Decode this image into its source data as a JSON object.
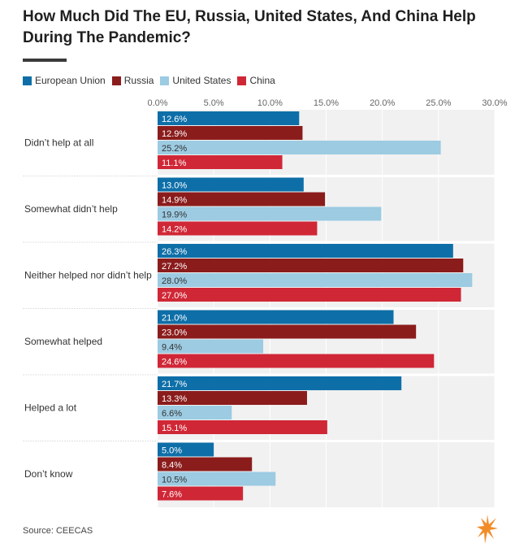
{
  "title": "How Much Did The EU, Russia, United States, And China Help During The Pandemic?",
  "source": "Source: CEECAS",
  "logo_icon": "rferl-flame-icon",
  "chart_data": {
    "type": "bar",
    "orientation": "horizontal",
    "categories": [
      "Didn’t help at all",
      "Somewhat didn’t help",
      "Neither helped nor didn’t help",
      "Somewhat helped",
      "Helped a lot",
      "Don’t know"
    ],
    "series": [
      {
        "name": "European Union",
        "color": "#0e6fa8",
        "label_color": "#ffffff",
        "values": [
          12.6,
          13.0,
          26.3,
          21.0,
          21.7,
          5.0
        ]
      },
      {
        "name": "Russia",
        "color": "#8b1c1c",
        "label_color": "#ffffff",
        "values": [
          12.9,
          14.9,
          27.2,
          23.0,
          13.3,
          8.4
        ]
      },
      {
        "name": "United States",
        "color": "#9ccbe2",
        "label_color": "#333333",
        "values": [
          25.2,
          19.9,
          28.0,
          9.4,
          6.6,
          10.5
        ]
      },
      {
        "name": "China",
        "color": "#d02736",
        "label_color": "#ffffff",
        "values": [
          11.1,
          14.2,
          27.0,
          24.6,
          15.1,
          7.6
        ]
      }
    ],
    "x_ticks": [
      "0.0%",
      "5.0%",
      "10.0%",
      "15.0%",
      "20.0%",
      "25.0%",
      "30.0%"
    ],
    "xlim": [
      0,
      30
    ],
    "xlabel": "",
    "ylabel": "",
    "grid": true,
    "legend_position": "top-left",
    "value_format": "{v}%"
  }
}
